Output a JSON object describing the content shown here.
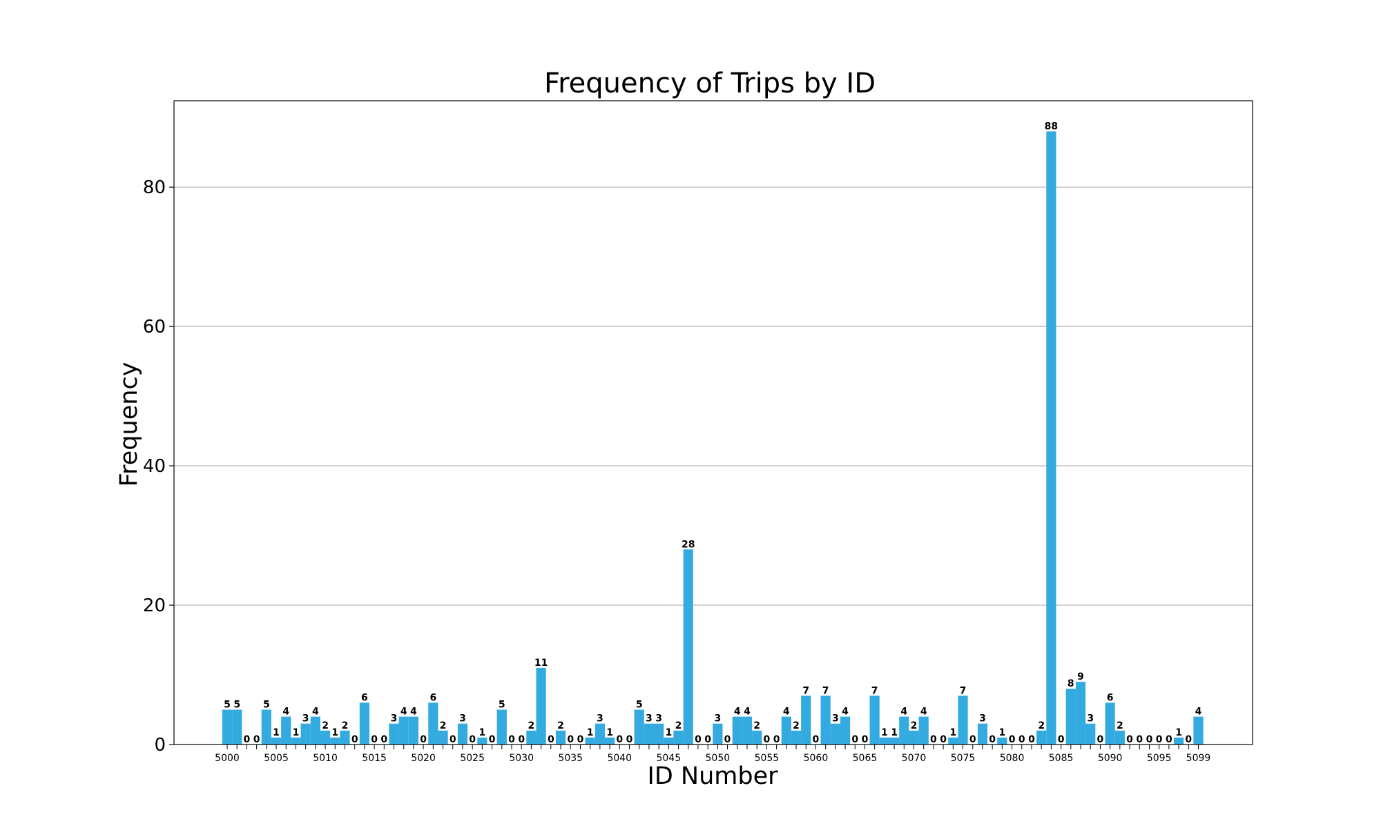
{
  "chart_data": {
    "type": "bar",
    "title": "Frequency of Trips by ID",
    "xlabel": "ID Number",
    "ylabel": "Frequency",
    "x_start": 5000,
    "x_end": 5099,
    "values": [
      5,
      5,
      0,
      0,
      5,
      1,
      4,
      1,
      3,
      4,
      2,
      1,
      2,
      0,
      6,
      0,
      0,
      3,
      4,
      4,
      0,
      6,
      2,
      0,
      3,
      0,
      1,
      0,
      5,
      0,
      0,
      2,
      11,
      0,
      2,
      0,
      0,
      1,
      3,
      1,
      0,
      0,
      5,
      3,
      3,
      1,
      2,
      28,
      0,
      0,
      3,
      0,
      4,
      4,
      2,
      0,
      0,
      4,
      2,
      7,
      0,
      7,
      3,
      4,
      0,
      0,
      7,
      1,
      1,
      4,
      2,
      4,
      0,
      0,
      1,
      7,
      0,
      3,
      0,
      1,
      0,
      0,
      0,
      2,
      88,
      0,
      8,
      9,
      3,
      0,
      6,
      2,
      0,
      0,
      0,
      0,
      0,
      1,
      0,
      4
    ],
    "xtick_labels": [
      "5000",
      "5005",
      "5010",
      "5015",
      "5020",
      "5025",
      "5030",
      "5035",
      "5040",
      "5045",
      "5050",
      "5055",
      "5060",
      "5065",
      "5070",
      "5075",
      "5080",
      "5085",
      "5090",
      "5095",
      "5099"
    ],
    "yticks": [
      0,
      20,
      40,
      60,
      80
    ],
    "ylim": [
      0,
      92.4
    ],
    "grid": "horizontal",
    "bar_color": "#34abe0",
    "show_value_labels": true
  }
}
